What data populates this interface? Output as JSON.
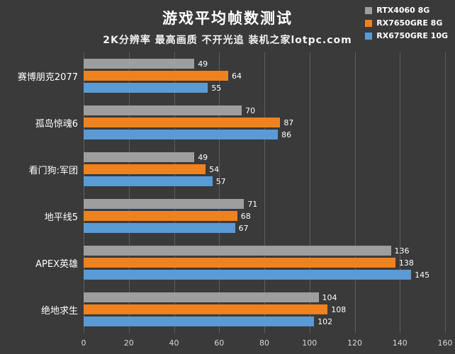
{
  "header": {
    "title": "游戏平均帧数测试",
    "subtitle": "2K分辨率 最高画质 不开光追 装机之家lotpc.com"
  },
  "colors": {
    "background": "#3a3a3a",
    "text": "#ffffff",
    "gridline": "#5e5e5e",
    "series_gray": "#9e9e9e",
    "series_orange": "#f0821e",
    "series_blue": "#5b9bd5"
  },
  "chart_data": {
    "type": "bar",
    "orientation": "horizontal",
    "title": "游戏平均帧数测试",
    "subtitle": "2K分辨率 最高画质 不开光追 装机之家lotpc.com",
    "categories": [
      "赛博朋克2077",
      "孤岛惊魂6",
      "看门狗:军团",
      "地平线5",
      "APEX英雄",
      "绝地求生"
    ],
    "series": [
      {
        "name": "RTX4060 8G",
        "color": "#9e9e9e",
        "values": [
          49,
          70,
          49,
          71,
          136,
          104
        ]
      },
      {
        "name": "RX7650GRE 8G",
        "color": "#f0821e",
        "values": [
          64,
          87,
          54,
          68,
          138,
          108
        ]
      },
      {
        "name": "RX6750GRE 10G",
        "color": "#5b9bd5",
        "values": [
          55,
          86,
          57,
          67,
          145,
          102
        ]
      }
    ],
    "xlim": [
      0,
      160
    ],
    "x_ticks": [
      0,
      20,
      40,
      60,
      80,
      100,
      120,
      140,
      160
    ],
    "xlabel": "",
    "ylabel": "",
    "grid": true,
    "legend_position": "top-right"
  }
}
